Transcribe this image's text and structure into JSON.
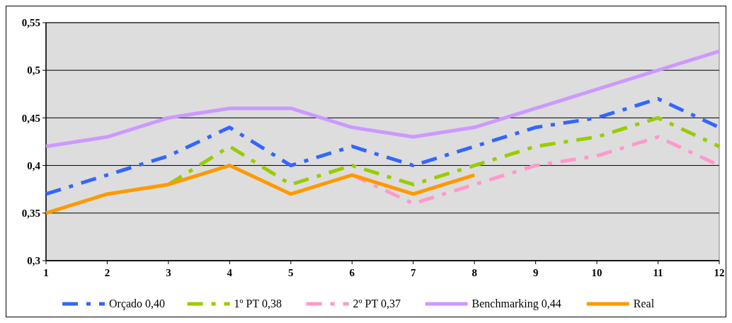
{
  "chart_data": {
    "type": "line",
    "x": [
      1,
      2,
      3,
      4,
      5,
      6,
      7,
      8,
      9,
      10,
      11,
      12
    ],
    "xlim": [
      1,
      12
    ],
    "xticks": [
      1,
      2,
      3,
      4,
      5,
      6,
      7,
      8,
      9,
      10,
      11,
      12
    ],
    "ylim": [
      0.3,
      0.55
    ],
    "yticks": [
      {
        "value": 0.3,
        "label": "0,3"
      },
      {
        "value": 0.35,
        "label": "0,35"
      },
      {
        "value": 0.4,
        "label": "0,4"
      },
      {
        "value": 0.45,
        "label": "0,45"
      },
      {
        "value": 0.5,
        "label": "0,5"
      },
      {
        "value": 0.55,
        "label": "0,55"
      }
    ],
    "grid": "y",
    "legend": "bottom",
    "marker": "none",
    "series": [
      {
        "name": "Orçado 0,40",
        "color": "#3366ff",
        "line_style": "dashed",
        "values": [
          0.37,
          0.39,
          0.41,
          0.44,
          0.4,
          0.42,
          0.4,
          0.42,
          0.44,
          0.45,
          0.47,
          0.44
        ]
      },
      {
        "name": "1º PT 0,38",
        "color": "#99cc00",
        "line_style": "dashed",
        "values": [
          null,
          null,
          0.38,
          0.42,
          0.38,
          0.4,
          0.38,
          0.4,
          0.42,
          0.43,
          0.45,
          0.42
        ]
      },
      {
        "name": "2º PT 0,37",
        "color": "#ff99cc",
        "line_style": "dashed",
        "values": [
          null,
          null,
          null,
          null,
          null,
          0.39,
          0.36,
          0.38,
          0.4,
          0.41,
          0.43,
          0.4
        ]
      },
      {
        "name": "Benchmarking 0,44",
        "color": "#cc99ff",
        "line_style": "solid",
        "values": [
          0.42,
          0.43,
          0.45,
          0.46,
          0.46,
          0.44,
          0.43,
          0.44,
          0.46,
          0.48,
          0.5,
          0.52
        ]
      },
      {
        "name": "Real",
        "color": "#ff9900",
        "line_style": "solid",
        "values": [
          0.35,
          0.37,
          0.38,
          0.4,
          0.37,
          0.39,
          0.37,
          0.39,
          null,
          null,
          null,
          null
        ]
      }
    ]
  }
}
